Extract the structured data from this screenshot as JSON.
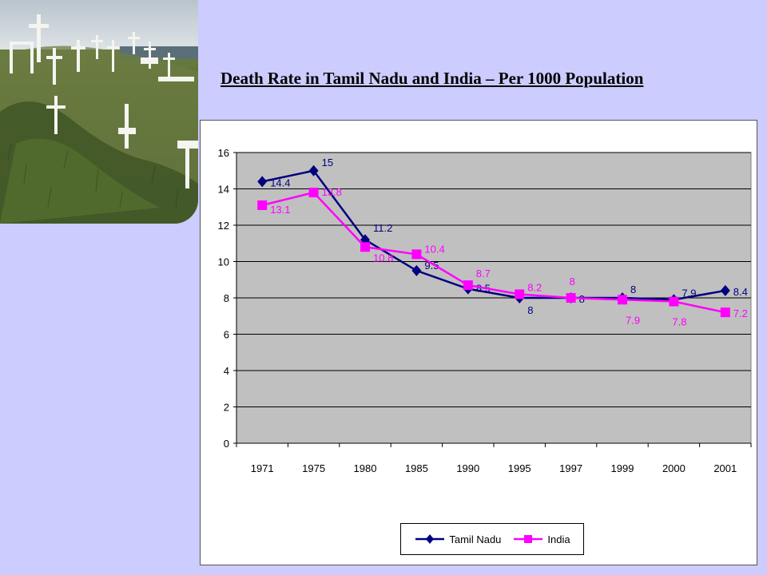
{
  "chart_data": {
    "type": "line",
    "title": "Death Rate in Tamil Nadu and India – Per 1000 Population",
    "categories": [
      "1971",
      "1975",
      "1980",
      "1985",
      "1990",
      "1995",
      "1997",
      "1999",
      "2000",
      "2001"
    ],
    "series": [
      {
        "name": "Tamil Nadu",
        "color": "#000080",
        "marker": "diamond",
        "values": [
          14.4,
          15,
          11.2,
          9.5,
          8.5,
          8,
          8,
          8,
          7.9,
          8.4
        ]
      },
      {
        "name": "India",
        "color": "#ff00ff",
        "marker": "square",
        "values": [
          13.1,
          13.8,
          10.8,
          10.4,
          8.7,
          8.2,
          8,
          7.9,
          7.8,
          7.2
        ]
      }
    ],
    "ylim": [
      0,
      16
    ],
    "yticks": [
      "0",
      "2",
      "4",
      "6",
      "8",
      "10",
      "12",
      "14",
      "16"
    ],
    "grid": true,
    "legend_position": "bottom"
  }
}
